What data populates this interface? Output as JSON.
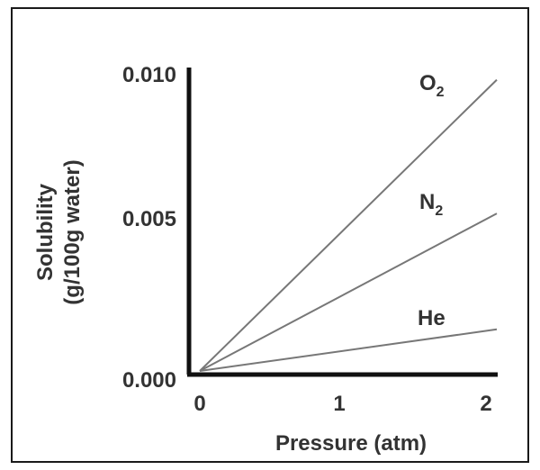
{
  "chart_data": {
    "type": "line",
    "xlabel": "Pressure (atm)",
    "ylabel_line1": "Solubility",
    "ylabel_line2": "(g/100g water)",
    "xlim": [
      0,
      2
    ],
    "ylim": [
      0,
      0.01
    ],
    "x_ticks": [
      "0",
      "1",
      "2"
    ],
    "y_ticks": [
      "0.000",
      "0.005",
      "0.010"
    ],
    "grid": false,
    "series": [
      {
        "name": "O2",
        "label_main": "O",
        "label_sub": "2",
        "x": [
          0,
          2
        ],
        "y": [
          0.0,
          0.0098
        ]
      },
      {
        "name": "N2",
        "label_main": "N",
        "label_sub": "2",
        "x": [
          0,
          2
        ],
        "y": [
          0.0,
          0.0053
        ]
      },
      {
        "name": "He",
        "label_main": "He",
        "label_sub": "",
        "x": [
          0,
          2
        ],
        "y": [
          0.0,
          0.0014
        ]
      }
    ],
    "colors": {
      "axis": "#111111",
      "line": "#777777",
      "text": "#333333"
    }
  }
}
